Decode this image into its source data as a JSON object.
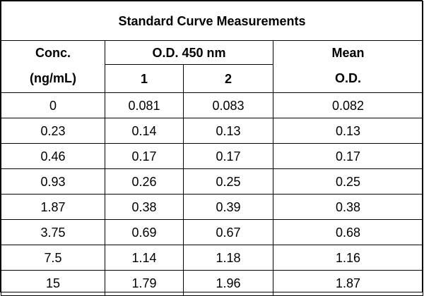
{
  "table": {
    "title": "Standard Curve Measurements",
    "headers": {
      "conc_line1": "Conc.",
      "conc_line2": "(ng/mL)",
      "od_group": "O.D. 450 nm",
      "od_col1": "1",
      "od_col2": "2",
      "mean_line1": "Mean",
      "mean_line2": "O.D."
    },
    "rows": [
      {
        "conc": "0",
        "od1": "0.081",
        "od2": "0.083",
        "mean": "0.082"
      },
      {
        "conc": "0.23",
        "od1": "0.14",
        "od2": "0.13",
        "mean": "0.13"
      },
      {
        "conc": "0.46",
        "od1": "0.17",
        "od2": "0.17",
        "mean": "0.17"
      },
      {
        "conc": "0.93",
        "od1": "0.26",
        "od2": "0.25",
        "mean": "0.25"
      },
      {
        "conc": "1.87",
        "od1": "0.38",
        "od2": "0.39",
        "mean": "0.38"
      },
      {
        "conc": "3.75",
        "od1": "0.69",
        "od2": "0.67",
        "mean": "0.68"
      },
      {
        "conc": "7.5",
        "od1": "1.14",
        "od2": "1.18",
        "mean": "1.16"
      },
      {
        "conc": "15",
        "od1": "1.79",
        "od2": "1.96",
        "mean": "1.87"
      }
    ]
  }
}
